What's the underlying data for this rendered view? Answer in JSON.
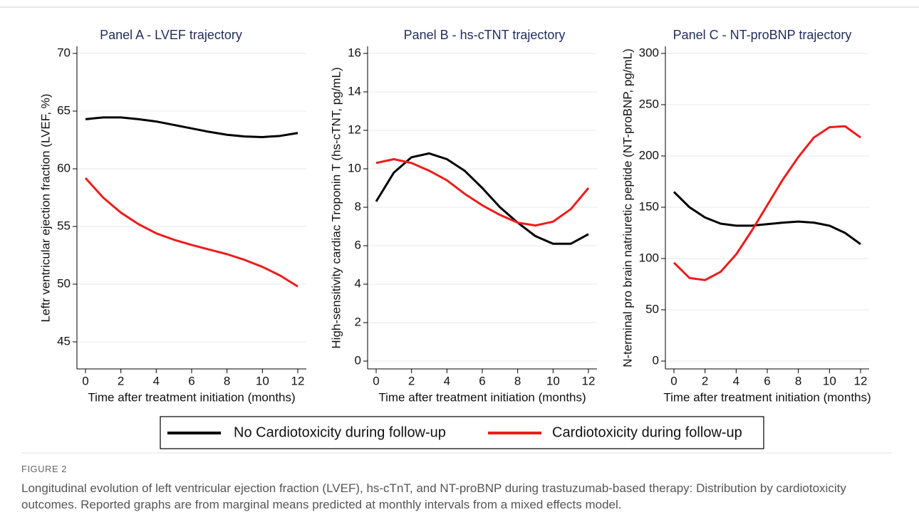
{
  "chart_data": [
    {
      "type": "line",
      "title": "Panel A - LVEF trajectory",
      "x_label": "Time after treatment initiation (months)",
      "y_label": "Leftr ventricular ejection fraction (LVEF, %)",
      "x": [
        0,
        1,
        2,
        3,
        4,
        5,
        6,
        7,
        8,
        9,
        10,
        11,
        12
      ],
      "xlim": [
        0,
        12
      ],
      "xticks": [
        0,
        2,
        4,
        6,
        8,
        10,
        12
      ],
      "ylim": [
        45,
        70
      ],
      "yticks": [
        45,
        50,
        55,
        60,
        65,
        70
      ],
      "grid": true,
      "series": [
        {
          "color": "#000000",
          "values": [
            64.3,
            64.45,
            64.45,
            64.3,
            64.1,
            63.8,
            63.5,
            63.2,
            62.95,
            62.8,
            62.75,
            62.85,
            63.1
          ]
        },
        {
          "color": "#ee1c1c",
          "values": [
            59.2,
            57.5,
            56.2,
            55.2,
            54.4,
            53.85,
            53.4,
            53.0,
            52.6,
            52.1,
            51.5,
            50.75,
            49.8
          ]
        }
      ]
    },
    {
      "type": "line",
      "title": "Panel B - hs-cTNT trajectory",
      "x_label": "Time after treatment initiation (months)",
      "y_label": "High-sensitivity cardiac Troponin T (hs-cTNT, pg/mL)",
      "x": [
        0,
        1,
        2,
        3,
        4,
        5,
        6,
        7,
        8,
        9,
        10,
        11,
        12
      ],
      "xlim": [
        0,
        12
      ],
      "xticks": [
        0,
        2,
        4,
        6,
        8,
        10,
        12
      ],
      "ylim": [
        0,
        16
      ],
      "yticks": [
        0,
        2,
        4,
        6,
        8,
        10,
        12,
        14,
        16
      ],
      "grid": true,
      "series": [
        {
          "color": "#000000",
          "values": [
            8.3,
            9.8,
            10.6,
            10.8,
            10.5,
            9.9,
            9.0,
            8.0,
            7.2,
            6.5,
            6.1,
            6.1,
            6.6
          ]
        },
        {
          "color": "#ee1c1c",
          "values": [
            10.3,
            10.5,
            10.3,
            9.9,
            9.4,
            8.7,
            8.1,
            7.6,
            7.2,
            7.05,
            7.25,
            7.9,
            9.0
          ]
        }
      ]
    },
    {
      "type": "line",
      "title": "Panel C - NT-proBNP trajectory",
      "x_label": "Time after treatment initiation (months)",
      "y_label": "N-terminal pro brain natriuretic peptide (NT-proBNP, pg/mL)",
      "x": [
        0,
        1,
        2,
        3,
        4,
        5,
        6,
        7,
        8,
        9,
        10,
        11,
        12
      ],
      "xlim": [
        0,
        12
      ],
      "xticks": [
        0,
        2,
        4,
        6,
        8,
        10,
        12
      ],
      "ylim": [
        0,
        300
      ],
      "yticks": [
        0,
        50,
        100,
        150,
        200,
        250,
        300
      ],
      "grid": true,
      "series": [
        {
          "color": "#000000",
          "values": [
            165,
            150,
            140,
            134,
            132,
            132,
            133.5,
            135,
            136,
            135,
            132,
            125,
            114
          ]
        },
        {
          "color": "#ee1c1c",
          "values": [
            96,
            81,
            79,
            87,
            104,
            127,
            152,
            177,
            199,
            218,
            228,
            229,
            218
          ]
        }
      ]
    }
  ],
  "legend": {
    "entries": [
      {
        "name": "No Cardiotoxicity during follow-up",
        "color": "#000000"
      },
      {
        "name": "Cardiotoxicity during follow-up",
        "color": "#ee1c1c"
      }
    ]
  },
  "caption": {
    "label": "FIGURE 2",
    "text": "Longitudinal evolution of left ventricular ejection fraction (LVEF), hs-cTnT, and NT-proBNP during trastuzumab-based therapy: Distribution by cardiotoxicity outcomes. Reported graphs are from marginal means predicted at monthly intervals from a mixed effects model."
  }
}
